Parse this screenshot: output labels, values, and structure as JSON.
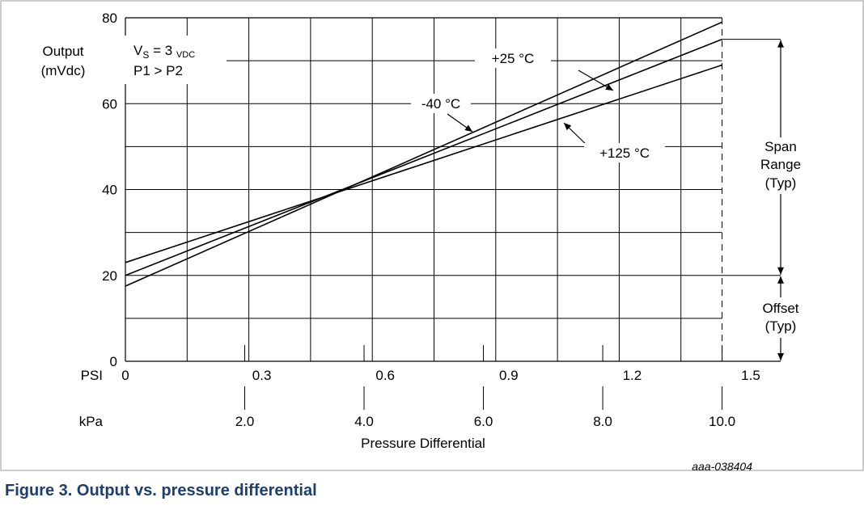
{
  "chart_data": {
    "type": "line",
    "y_tick_labels": [
      "0",
      "20",
      "40",
      "60",
      "80"
    ],
    "ylim": [
      0,
      80
    ],
    "ylabel": [
      "Output",
      "(mVdc)"
    ],
    "psi_label": "PSI",
    "psi_ticks": [
      "0",
      "0.3",
      "0.6",
      "0.9",
      "1.2",
      "1.5"
    ],
    "psi_lim": [
      0,
      1.5
    ],
    "kpa_label": "kPa",
    "kpa_ticks": [
      "2.0",
      "4.0",
      "6.0",
      "8.0",
      "10.0"
    ],
    "xlabel": "Pressure Differential",
    "series": [
      {
        "name": "-40 °C",
        "x": [
          0,
          1.45
        ],
        "y": [
          17.5,
          79
        ]
      },
      {
        "name": "+25 °C",
        "x": [
          0,
          1.45
        ],
        "y": [
          20,
          75
        ]
      },
      {
        "name": "+125 °C",
        "x": [
          0,
          1.45
        ],
        "y": [
          23,
          69
        ]
      }
    ],
    "annotations": {
      "vs_main": "V",
      "vs_sub": "S",
      "vs_eq": " = 3 ",
      "vs_unit": "VDC",
      "pressure_relation": "P1 > P2",
      "span": [
        "Span",
        "Range",
        "(Typ)"
      ],
      "offset": [
        "Offset",
        "(Typ)"
      ]
    },
    "code": "aaa-038404"
  },
  "caption": "Figure 3.  Output vs. pressure differential"
}
